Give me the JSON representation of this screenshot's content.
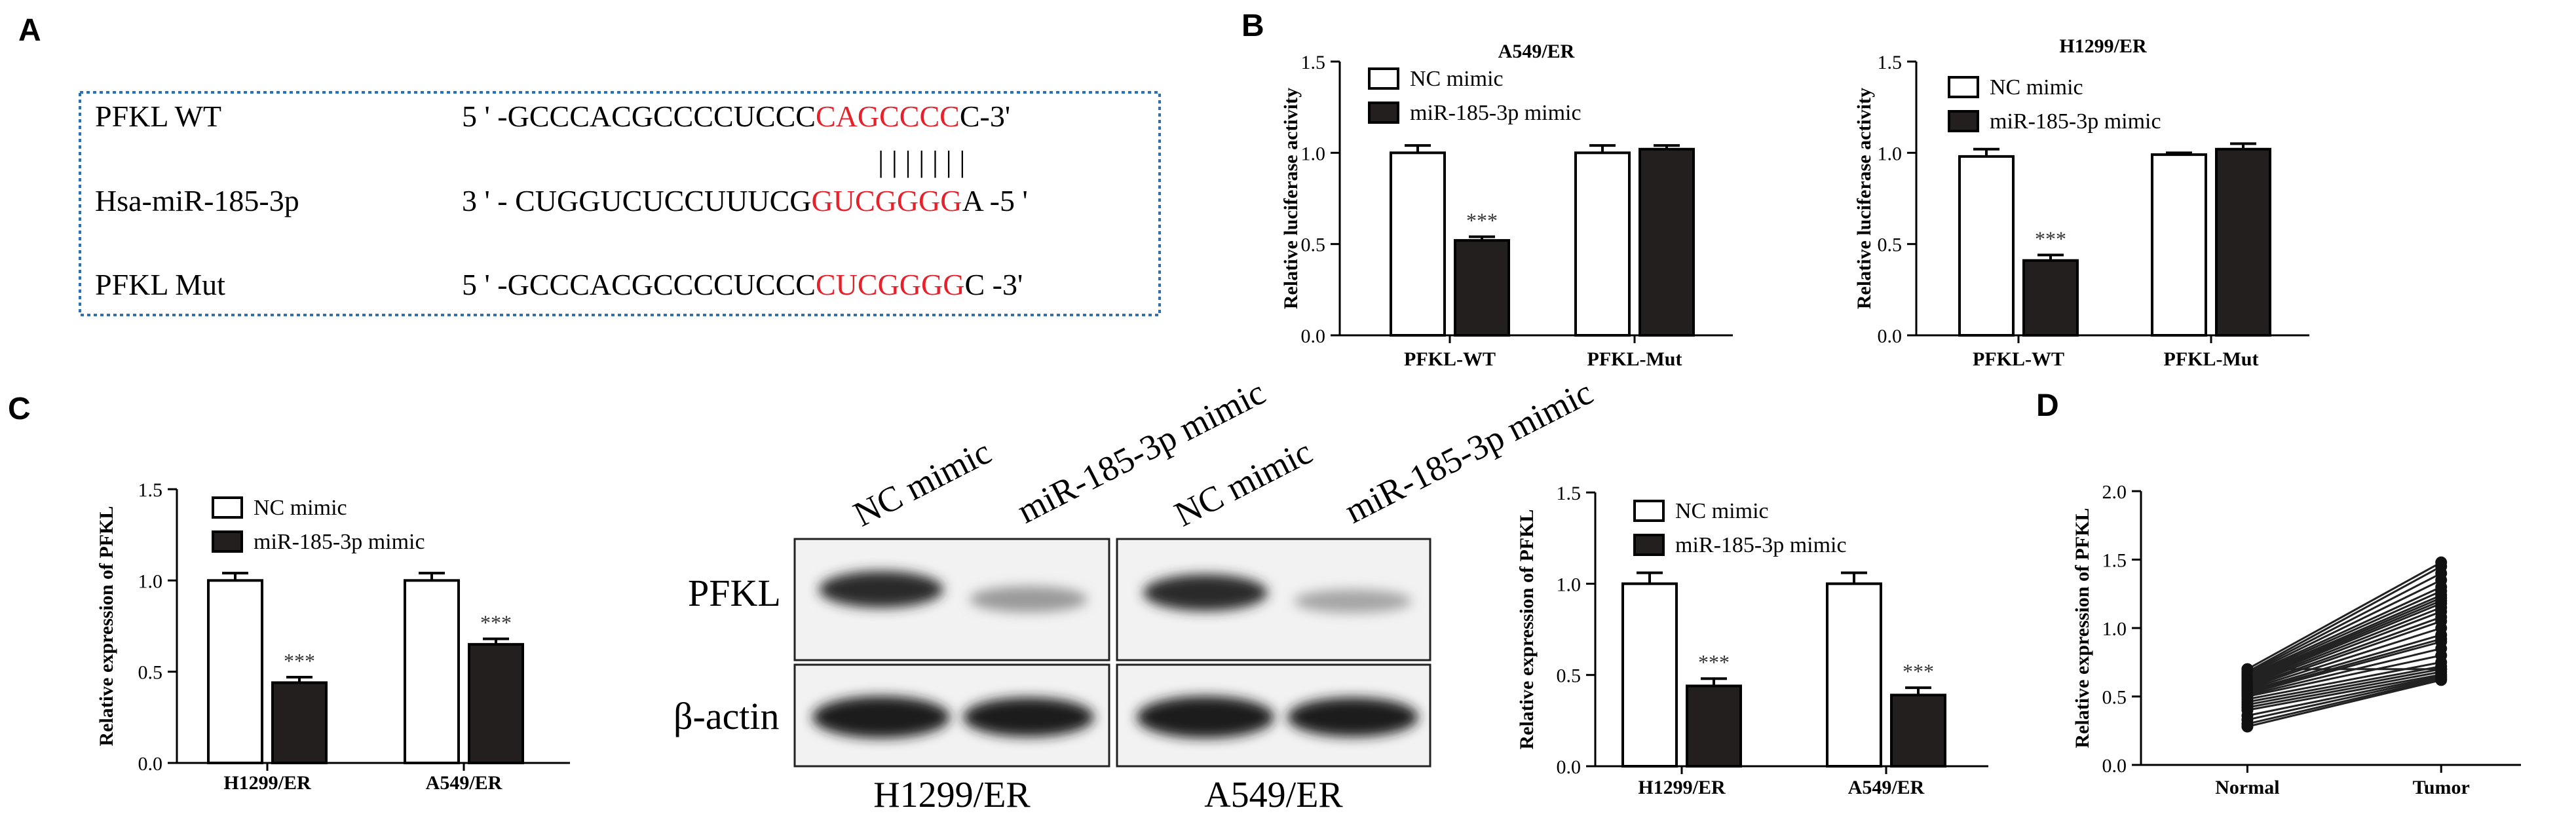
{
  "panel_letters": {
    "A": "A",
    "B": "B",
    "C": "C",
    "D": "D"
  },
  "sequence_panel": {
    "rows": [
      {
        "label": "PFKL WT",
        "prefix": "5 ' -GCCCACGCCCCUCCC",
        "highlight": "CAGCCCC",
        "suffix": "C-3'"
      },
      {
        "label": "Hsa-miR-185-3p",
        "prefix": "3 ' - CUGGUCUCCUUUCG",
        "highlight": "GUCGGGG",
        "suffix": "A -5 '"
      },
      {
        "label": "PFKL Mut",
        "prefix": "5 ' -GCCCACGCCCCUCCC",
        "highlight": "CUCGGGG",
        "suffix": "C -3'"
      }
    ],
    "pairing_marks": "| | | | | | |",
    "highlight_color": "#e8202a",
    "border_color": "#2f6fb3"
  },
  "legend": {
    "nc": "NC mimic",
    "mir": "miR-185-3p mimic"
  },
  "colors": {
    "nc_fill": "#ffffff",
    "mir_fill": "#231f1e",
    "axis": "#000000"
  },
  "western_blot": {
    "lane_labels": [
      "NC mimic",
      "miR-185-3p mimic",
      "NC mimic",
      "miR-185-3p mimic"
    ],
    "row_labels": [
      "PFKL",
      "β-actin"
    ],
    "group_labels": [
      "H1299/ER",
      "A549/ER"
    ]
  },
  "chart_data": [
    {
      "id": "B-left",
      "type": "bar",
      "title": "A549/ER",
      "ylabel": "Relative luciferase activity",
      "ylim": [
        0,
        1.5
      ],
      "yticks": [
        "0.0",
        "0.5",
        "1.0",
        "1.5"
      ],
      "categories": [
        "PFKL-WT",
        "PFKL-Mut"
      ],
      "series": [
        {
          "name": "NC mimic",
          "values": [
            1.0,
            1.0
          ],
          "errors": [
            0.04,
            0.04
          ]
        },
        {
          "name": "miR-185-3p mimic",
          "values": [
            0.52,
            1.02
          ],
          "errors": [
            0.02,
            0.02
          ]
        }
      ],
      "annotations": [
        {
          "category": "PFKL-WT",
          "text": "***"
        }
      ],
      "legend": "top-left",
      "grid": false
    },
    {
      "id": "B-right",
      "type": "bar",
      "title": "H1299/ER",
      "ylabel": "Relative luciferase activity",
      "ylim": [
        0,
        1.5
      ],
      "yticks": [
        "0.0",
        "0.5",
        "1.0",
        "1.5"
      ],
      "categories": [
        "PFKL-WT",
        "PFKL-Mut"
      ],
      "series": [
        {
          "name": "NC mimic",
          "values": [
            0.98,
            0.99
          ],
          "errors": [
            0.04,
            0.01
          ]
        },
        {
          "name": "miR-185-3p mimic",
          "values": [
            0.41,
            1.02
          ],
          "errors": [
            0.03,
            0.03
          ]
        }
      ],
      "annotations": [
        {
          "category": "PFKL-WT",
          "text": "***"
        }
      ],
      "legend": "top-left",
      "grid": false
    },
    {
      "id": "C-left",
      "type": "bar",
      "ylabel": "Relative expression of PFKL",
      "ylim": [
        0,
        1.5
      ],
      "yticks": [
        "0.0",
        "0.5",
        "1.0",
        "1.5"
      ],
      "categories": [
        "H1299/ER",
        "A549/ER"
      ],
      "series": [
        {
          "name": "NC mimic",
          "values": [
            1.0,
            1.0
          ],
          "errors": [
            0.04,
            0.04
          ]
        },
        {
          "name": "miR-185-3p mimic",
          "values": [
            0.44,
            0.65
          ],
          "errors": [
            0.03,
            0.03
          ]
        }
      ],
      "annotations": [
        {
          "category": "H1299/ER",
          "text": "***"
        },
        {
          "category": "A549/ER",
          "text": "***"
        }
      ],
      "legend": "top-left",
      "grid": false
    },
    {
      "id": "C-right",
      "type": "bar",
      "ylabel": "Relative expression of PFKL",
      "ylim": [
        0,
        1.5
      ],
      "yticks": [
        "0.0",
        "0.5",
        "1.0",
        "1.5"
      ],
      "categories": [
        "H1299/ER",
        "A549/ER"
      ],
      "series": [
        {
          "name": "NC mimic",
          "values": [
            1.0,
            1.0
          ],
          "errors": [
            0.06,
            0.06
          ]
        },
        {
          "name": "miR-185-3p mimic",
          "values": [
            0.44,
            0.39
          ],
          "errors": [
            0.04,
            0.04
          ]
        }
      ],
      "annotations": [
        {
          "category": "H1299/ER",
          "text": "***"
        },
        {
          "category": "A549/ER",
          "text": "***"
        }
      ],
      "legend": "top-left",
      "grid": false
    },
    {
      "id": "D",
      "type": "line",
      "ylabel": "Relative expression of PFKL",
      "ylim": [
        0,
        2.0
      ],
      "yticks": [
        "0.0",
        "0.5",
        "1.0",
        "1.5",
        "2.0"
      ],
      "categories": [
        "Normal",
        "Tumor"
      ],
      "pairs": [
        [
          0.7,
          1.48
        ],
        [
          0.68,
          1.45
        ],
        [
          0.67,
          1.4
        ],
        [
          0.66,
          1.35
        ],
        [
          0.65,
          1.3
        ],
        [
          0.64,
          1.27
        ],
        [
          0.63,
          1.24
        ],
        [
          0.62,
          1.22
        ],
        [
          0.61,
          1.2
        ],
        [
          0.6,
          1.18
        ],
        [
          0.59,
          1.15
        ],
        [
          0.58,
          1.12
        ],
        [
          0.57,
          1.08
        ],
        [
          0.56,
          1.05
        ],
        [
          0.55,
          1.0
        ],
        [
          0.54,
          0.95
        ],
        [
          0.53,
          0.92
        ],
        [
          0.52,
          0.9
        ],
        [
          0.51,
          0.85
        ],
        [
          0.5,
          0.8
        ],
        [
          0.48,
          0.75
        ],
        [
          0.46,
          0.72
        ],
        [
          0.44,
          0.7
        ],
        [
          0.42,
          0.68
        ],
        [
          0.4,
          0.66
        ],
        [
          0.36,
          0.65
        ],
        [
          0.33,
          0.64
        ],
        [
          0.3,
          0.63
        ],
        [
          0.28,
          0.62
        ],
        [
          0.7,
          0.7
        ]
      ],
      "grid": false
    }
  ]
}
